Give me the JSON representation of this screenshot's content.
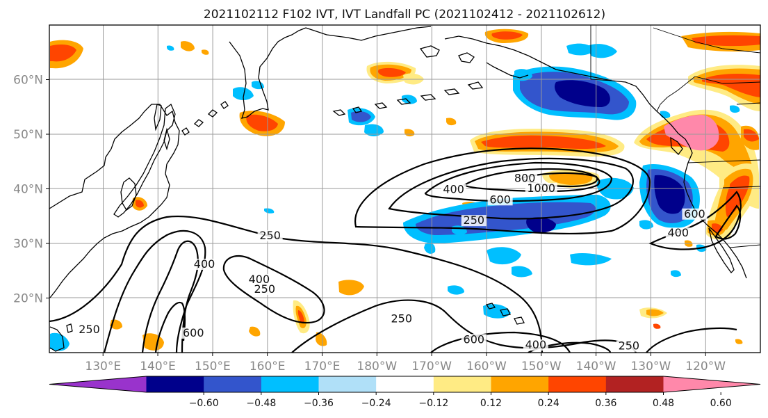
{
  "title": "2021102112 F102 IVT, IVT Landfall PC (2021102412 - 2021102612)",
  "lat_ticks": [
    {
      "label": "60°N",
      "lat": 60
    },
    {
      "label": "50°N",
      "lat": 50
    },
    {
      "label": "40°N",
      "lat": 40
    },
    {
      "label": "30°N",
      "lat": 30
    },
    {
      "label": "20°N",
      "lat": 20
    }
  ],
  "lon_ticks": [
    {
      "label": "130°E",
      "lon": 130
    },
    {
      "label": "140°E",
      "lon": 140
    },
    {
      "label": "150°E",
      "lon": 150
    },
    {
      "label": "160°E",
      "lon": 160
    },
    {
      "label": "170°E",
      "lon": 170
    },
    {
      "label": "180°W",
      "lon": 180
    },
    {
      "label": "170°W",
      "lon": 190
    },
    {
      "label": "160°W",
      "lon": 200
    },
    {
      "label": "150°W",
      "lon": 210
    },
    {
      "label": "140°W",
      "lon": 220
    },
    {
      "label": "130°W",
      "lon": 230
    },
    {
      "label": "120°W",
      "lon": 240
    }
  ],
  "colorbar": {
    "colors": [
      "#9933cc",
      "#00008b",
      "#3355cc",
      "#00bfff",
      "#b0e0f8",
      "#ffffff",
      "#ffeb84",
      "#ffa500",
      "#ff4500",
      "#b22222",
      "#ff88aa"
    ],
    "ticks": [
      "−0.60",
      "−0.48",
      "−0.36",
      "−0.24",
      "−0.12",
      "0.12",
      "0.24",
      "0.36",
      "0.48",
      "0.60"
    ]
  },
  "contour_labels": [
    {
      "text": "800",
      "lon": 207,
      "lat": 41.5
    },
    {
      "text": "1000",
      "lon": 210,
      "lat": 39.7
    },
    {
      "text": "400",
      "lon": 194,
      "lat": 39.5
    },
    {
      "text": "600",
      "lon": 202.5,
      "lat": 37.6
    },
    {
      "text": "250",
      "lon": 197.7,
      "lat": 33.8
    },
    {
      "text": "250",
      "lon": 160.5,
      "lat": 31.0
    },
    {
      "text": "400",
      "lon": 148.5,
      "lat": 25.8
    },
    {
      "text": "400",
      "lon": 158.5,
      "lat": 23.0
    },
    {
      "text": "250",
      "lon": 159.5,
      "lat": 21.2
    },
    {
      "text": "600",
      "lon": 146.5,
      "lat": 13.2
    },
    {
      "text": "250",
      "lon": 127.5,
      "lat": 13.8
    },
    {
      "text": "250",
      "lon": 184.5,
      "lat": 15.8
    },
    {
      "text": "600",
      "lon": 197.7,
      "lat": 12.0
    },
    {
      "text": "400",
      "lon": 209.0,
      "lat": 11.0
    },
    {
      "text": "250",
      "lon": 226.0,
      "lat": 10.8
    },
    {
      "text": "400",
      "lon": 235.0,
      "lat": 31.5
    },
    {
      "text": "600",
      "lon": 238.0,
      "lat": 35.0
    }
  ]
}
